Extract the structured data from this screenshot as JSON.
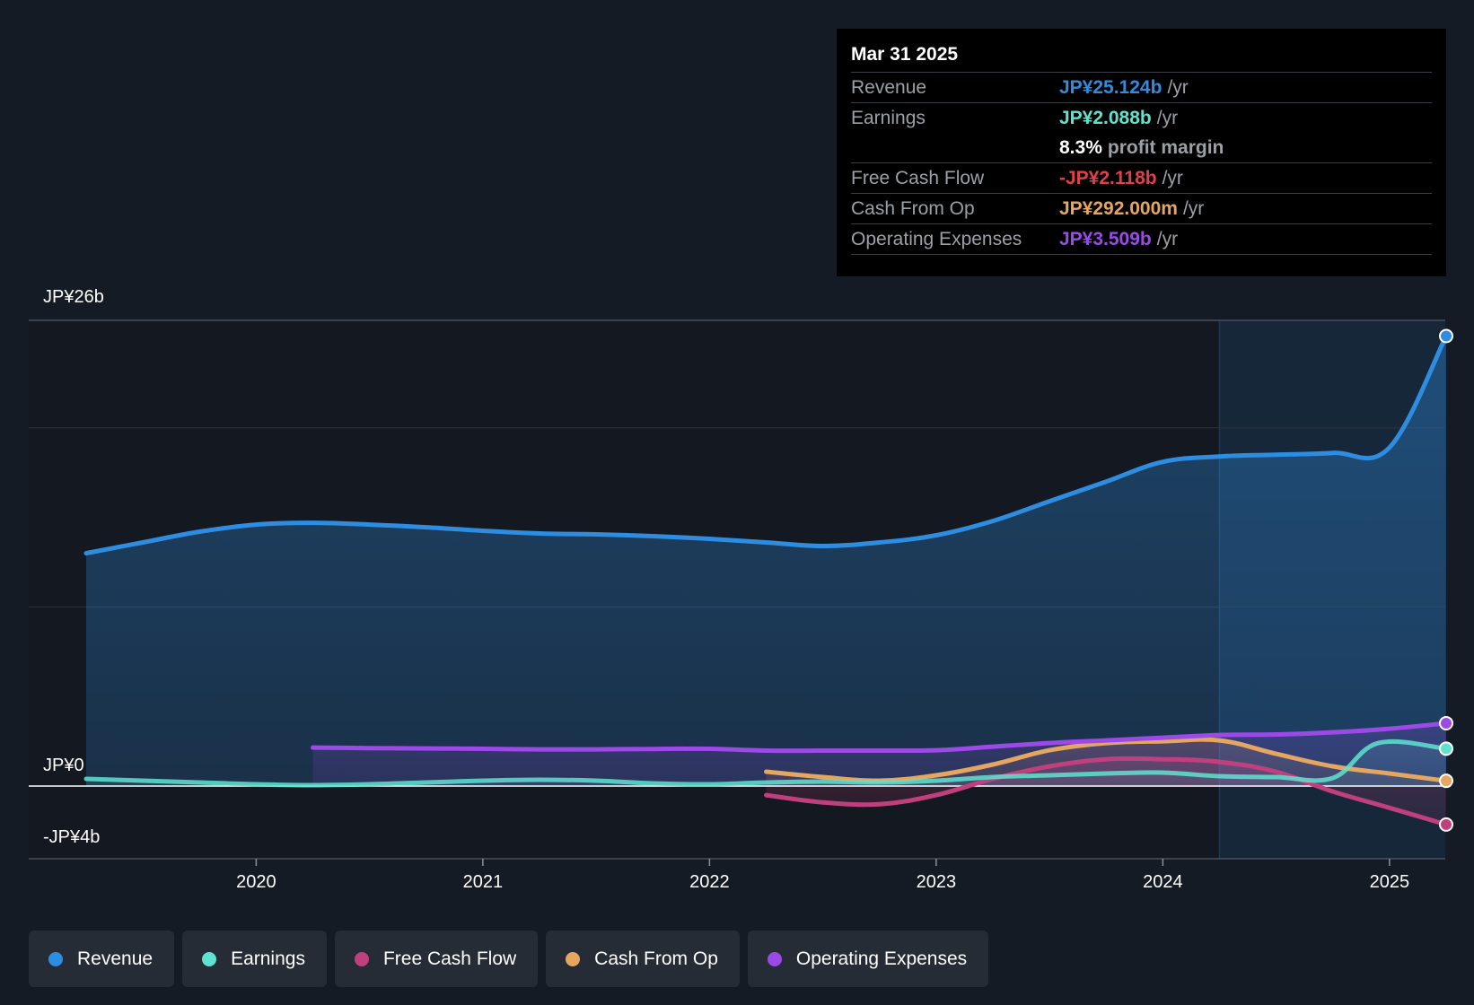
{
  "chart_data": {
    "type": "area",
    "title": "",
    "y_axis_labels": {
      "top": "JP¥26b",
      "zero": "JP¥0",
      "bottom": "-JP¥4b"
    },
    "ylim": [
      -4,
      26
    ],
    "x_tick_labels": [
      "2020",
      "2021",
      "2022",
      "2023",
      "2024",
      "2025"
    ],
    "x_tick_values": [
      2020,
      2021,
      2022,
      2023,
      2024,
      2025
    ],
    "xlim": [
      2019.25,
      2025.25
    ],
    "highlight_start": 2024.25,
    "series": [
      {
        "name": "Revenue",
        "color": "#2e8de0",
        "fill": true,
        "points": [
          [
            2019.25,
            13.0
          ],
          [
            2019.5,
            13.6
          ],
          [
            2019.75,
            14.2
          ],
          [
            2020.0,
            14.6
          ],
          [
            2020.25,
            14.7
          ],
          [
            2020.5,
            14.6
          ],
          [
            2020.75,
            14.45
          ],
          [
            2021.0,
            14.25
          ],
          [
            2021.25,
            14.1
          ],
          [
            2021.5,
            14.05
          ],
          [
            2021.75,
            13.95
          ],
          [
            2022.0,
            13.8
          ],
          [
            2022.25,
            13.6
          ],
          [
            2022.5,
            13.4
          ],
          [
            2022.75,
            13.6
          ],
          [
            2023.0,
            14.0
          ],
          [
            2023.25,
            14.8
          ],
          [
            2023.5,
            15.9
          ],
          [
            2023.75,
            17.0
          ],
          [
            2024.0,
            18.1
          ],
          [
            2024.25,
            18.4
          ],
          [
            2024.5,
            18.5
          ],
          [
            2024.75,
            18.6
          ],
          [
            2025.0,
            18.9
          ],
          [
            2025.25,
            25.124
          ]
        ]
      },
      {
        "name": "Earnings",
        "color": "#5fe3d0",
        "fill": true,
        "points": [
          [
            2019.25,
            0.4
          ],
          [
            2019.5,
            0.3
          ],
          [
            2019.75,
            0.2
          ],
          [
            2020.0,
            0.1
          ],
          [
            2020.25,
            0.05
          ],
          [
            2020.5,
            0.1
          ],
          [
            2020.75,
            0.2
          ],
          [
            2021.0,
            0.3
          ],
          [
            2021.25,
            0.35
          ],
          [
            2021.5,
            0.3
          ],
          [
            2021.75,
            0.15
          ],
          [
            2022.0,
            0.1
          ],
          [
            2022.25,
            0.2
          ],
          [
            2022.5,
            0.25
          ],
          [
            2022.75,
            0.2
          ],
          [
            2023.0,
            0.3
          ],
          [
            2023.25,
            0.5
          ],
          [
            2023.5,
            0.6
          ],
          [
            2023.75,
            0.7
          ],
          [
            2024.0,
            0.75
          ],
          [
            2024.25,
            0.55
          ],
          [
            2024.5,
            0.5
          ],
          [
            2024.75,
            0.45
          ],
          [
            2024.95,
            2.4
          ],
          [
            2025.25,
            2.088
          ]
        ]
      },
      {
        "name": "Free Cash Flow",
        "color": "#c0407e",
        "fill": true,
        "points": [
          [
            2022.25,
            -0.5
          ],
          [
            2022.5,
            -0.9
          ],
          [
            2022.75,
            -1.0
          ],
          [
            2023.0,
            -0.5
          ],
          [
            2023.25,
            0.4
          ],
          [
            2023.5,
            1.1
          ],
          [
            2023.75,
            1.5
          ],
          [
            2024.0,
            1.5
          ],
          [
            2024.25,
            1.35
          ],
          [
            2024.5,
            0.8
          ],
          [
            2024.75,
            -0.3
          ],
          [
            2025.0,
            -1.2
          ],
          [
            2025.25,
            -2.118
          ]
        ]
      },
      {
        "name": "Cash From Op",
        "color": "#e5a661",
        "fill": true,
        "points": [
          [
            2022.25,
            0.8
          ],
          [
            2022.5,
            0.5
          ],
          [
            2022.75,
            0.3
          ],
          [
            2023.0,
            0.6
          ],
          [
            2023.25,
            1.2
          ],
          [
            2023.5,
            2.0
          ],
          [
            2023.75,
            2.4
          ],
          [
            2024.0,
            2.5
          ],
          [
            2024.25,
            2.55
          ],
          [
            2024.5,
            1.8
          ],
          [
            2024.75,
            1.1
          ],
          [
            2025.0,
            0.7
          ],
          [
            2025.25,
            0.292
          ]
        ]
      },
      {
        "name": "Operating Expenses",
        "color": "#9b4ae6",
        "fill": true,
        "points": [
          [
            2020.25,
            2.15
          ],
          [
            2020.5,
            2.12
          ],
          [
            2020.75,
            2.1
          ],
          [
            2021.0,
            2.08
          ],
          [
            2021.25,
            2.05
          ],
          [
            2021.5,
            2.05
          ],
          [
            2021.75,
            2.07
          ],
          [
            2022.0,
            2.08
          ],
          [
            2022.25,
            1.98
          ],
          [
            2022.5,
            1.98
          ],
          [
            2022.75,
            1.98
          ],
          [
            2023.0,
            2.0
          ],
          [
            2023.25,
            2.2
          ],
          [
            2023.5,
            2.4
          ],
          [
            2023.75,
            2.55
          ],
          [
            2024.0,
            2.7
          ],
          [
            2024.25,
            2.85
          ],
          [
            2024.5,
            2.88
          ],
          [
            2024.75,
            3.0
          ],
          [
            2025.0,
            3.2
          ],
          [
            2025.25,
            3.509
          ]
        ]
      }
    ],
    "tooltip": {
      "date": "Mar 31 2025",
      "rows": [
        {
          "label": "Revenue",
          "value": "JP¥25.124b",
          "unit": "/yr",
          "color": "#2e8de0"
        },
        {
          "label": "Earnings",
          "value": "JP¥2.088b",
          "unit": "/yr",
          "color": "#5fe3d0"
        },
        {
          "label": "",
          "value": "8.3%",
          "unit": "profit margin",
          "color": "#ffffff"
        },
        {
          "label": "Free Cash Flow",
          "value": "-JP¥2.118b",
          "unit": "/yr",
          "color": "#e0404a"
        },
        {
          "label": "Cash From Op",
          "value": "JP¥292.000m",
          "unit": "/yr",
          "color": "#e5a661"
        },
        {
          "label": "Operating Expenses",
          "value": "JP¥3.509b",
          "unit": "/yr",
          "color": "#9b4ae6"
        }
      ]
    },
    "legend": [
      {
        "label": "Revenue",
        "color": "#2e8de0"
      },
      {
        "label": "Earnings",
        "color": "#5fe3d0"
      },
      {
        "label": "Free Cash Flow",
        "color": "#c0407e"
      },
      {
        "label": "Cash From Op",
        "color": "#e5a661"
      },
      {
        "label": "Operating Expenses",
        "color": "#9b4ae6"
      }
    ]
  }
}
